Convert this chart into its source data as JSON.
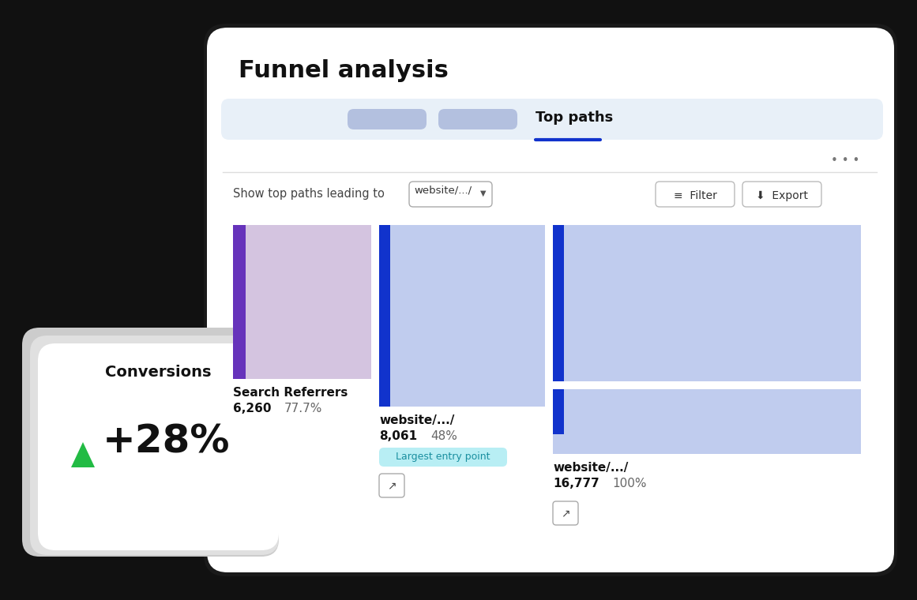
{
  "bg_color": "#111111",
  "title": "Funnel analysis",
  "active_tab_text": "Top paths",
  "show_paths_text": "Show top paths leading to",
  "dropdown_text": "website/.../",
  "conversions_title": "Conversions",
  "conversions_value": "+28%",
  "col1_label": "Search Referrers",
  "col1_value": "6,260",
  "col1_percent": "77.7%",
  "col2_label": "website/.../",
  "col2_value": "8,061",
  "col2_percent": "48%",
  "col2_badge": "Largest entry point",
  "col3_label": "website/.../",
  "col3_value": "16,777",
  "col3_percent": "100%",
  "bar1_color": "#d4c4e0",
  "bar1_accent": "#6633bb",
  "bar2_color": "#c0ccee",
  "bar2_accent": "#1133cc",
  "bar3_color": "#c0ccee",
  "bar3_accent": "#1133cc",
  "tab_bg": "#e8f0f8",
  "pill_color": "#8899cc",
  "underline_color": "#1133cc",
  "badge_bg": "#b8eef4",
  "badge_text_color": "#1a8fa0",
  "main_card_bg": "#ffffff",
  "small_card_bg": "#ffffff",
  "gray_card_bg": "#e0e0e0"
}
